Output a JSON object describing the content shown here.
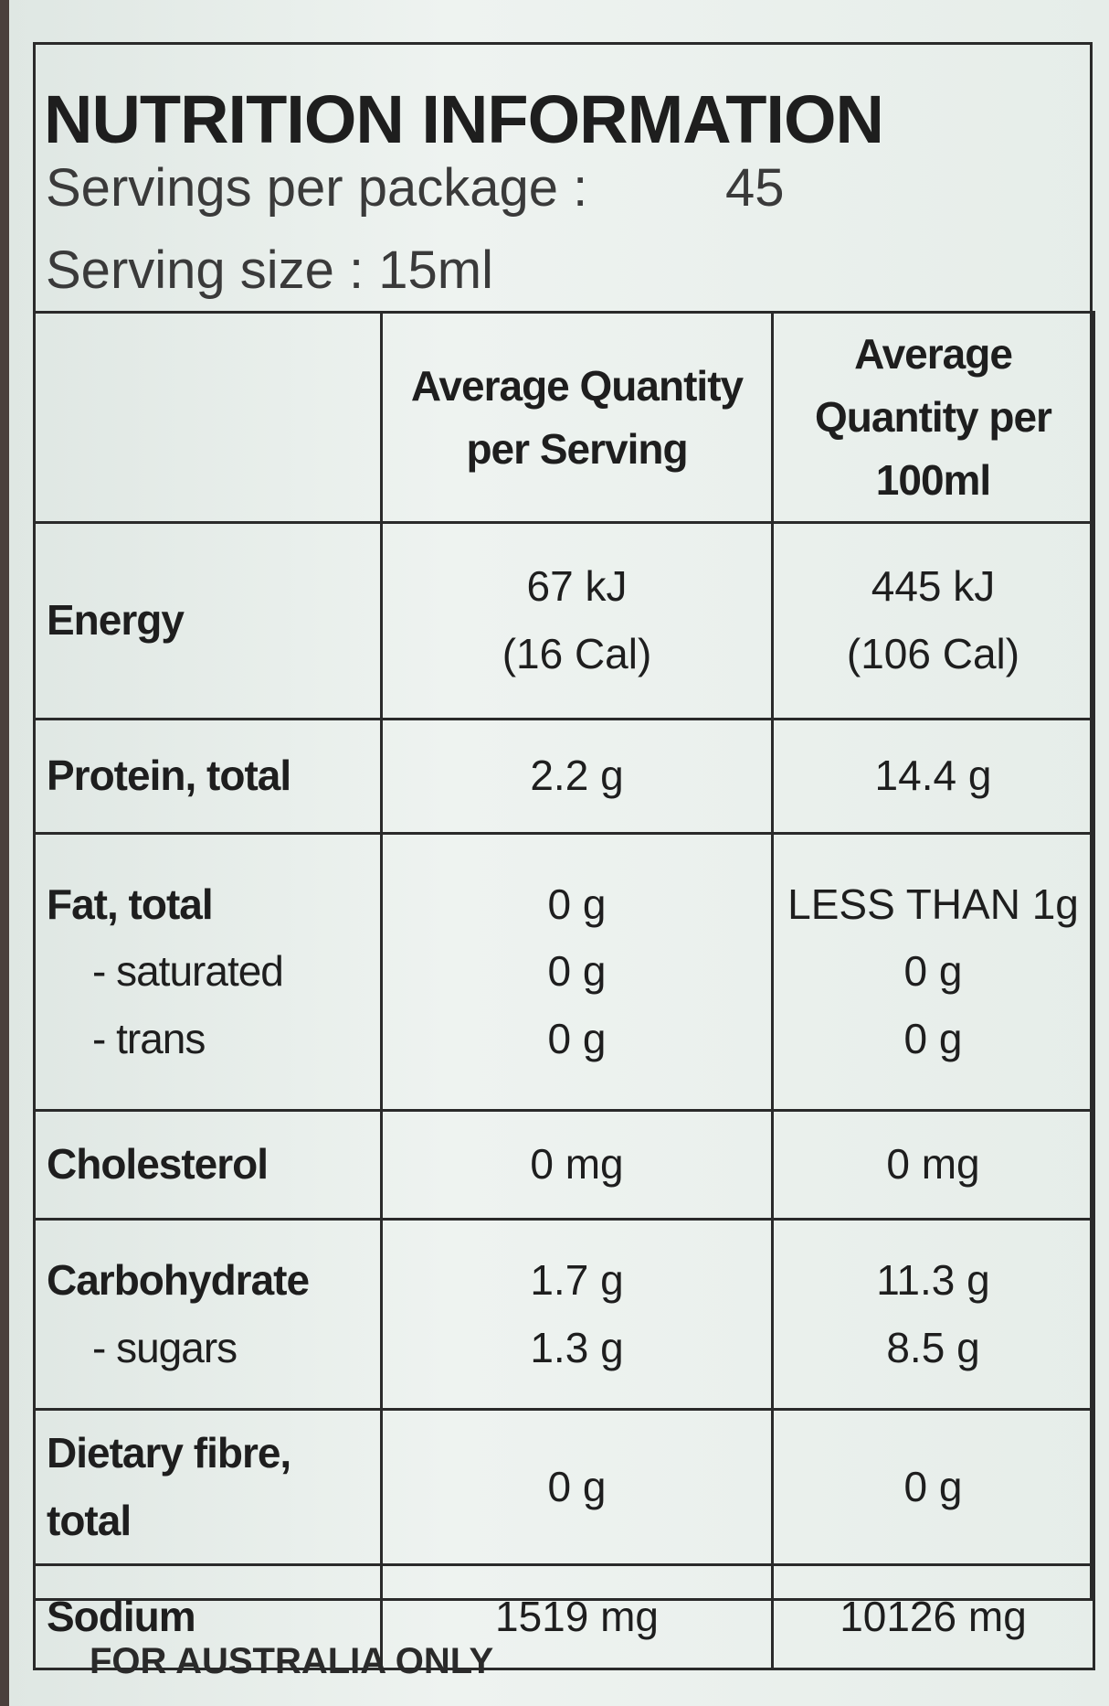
{
  "header": {
    "title": "NUTRITION INFORMATION",
    "servings_label": "Servings per package :",
    "servings_value": "45",
    "serving_size": "Serving size : 15ml"
  },
  "table": {
    "columns": [
      "Average Quantity per Serving",
      "Average Quantity per 100ml"
    ],
    "rows": [
      {
        "labels": [
          "Energy"
        ],
        "serving": [
          "67 kJ",
          "(16 Cal)"
        ],
        "per100": [
          "445 kJ",
          "(106 Cal)"
        ]
      },
      {
        "labels": [
          "Protein, total"
        ],
        "serving": [
          "2.2 g"
        ],
        "per100": [
          "14.4 g"
        ]
      },
      {
        "labels": [
          "Fat, total",
          "- saturated",
          "- trans"
        ],
        "serving": [
          "0 g",
          "0 g",
          "0 g"
        ],
        "per100": [
          "LESS THAN 1g",
          "0 g",
          "0 g"
        ]
      },
      {
        "labels": [
          "Cholesterol"
        ],
        "serving": [
          "0 mg"
        ],
        "per100": [
          "0 mg"
        ]
      },
      {
        "labels": [
          "Carbohydrate",
          "- sugars"
        ],
        "serving": [
          "1.7 g",
          "1.3 g"
        ],
        "per100": [
          "11.3 g",
          "8.5 g"
        ]
      },
      {
        "labels": [
          "Dietary fibre, total"
        ],
        "serving": [
          "0 g"
        ],
        "per100": [
          "0 g"
        ]
      },
      {
        "labels": [
          "Sodium"
        ],
        "serving": [
          "1519 mg"
        ],
        "per100": [
          "10126 mg"
        ]
      }
    ]
  },
  "footer": "FOR AUSTRALIA ONLY"
}
